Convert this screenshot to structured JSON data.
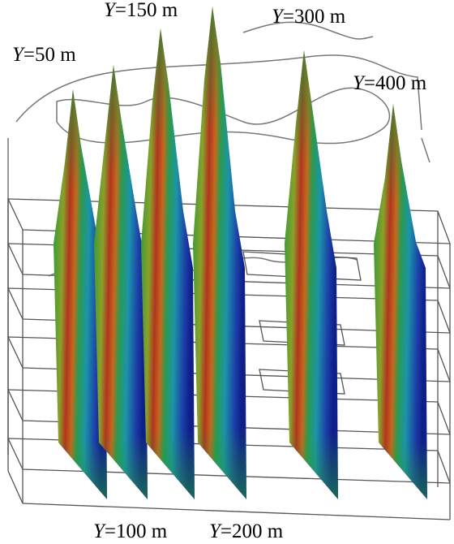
{
  "labels": [
    {
      "italic": "Y",
      "rest": "=50 m"
    },
    {
      "italic": "Y",
      "rest": "=100 m"
    },
    {
      "italic": "Y",
      "rest": "=150 m"
    },
    {
      "italic": "Y",
      "rest": "=200 m"
    },
    {
      "italic": "Y",
      "rest": "=300 m"
    },
    {
      "italic": "Y",
      "rest": "=400 m"
    }
  ]
}
